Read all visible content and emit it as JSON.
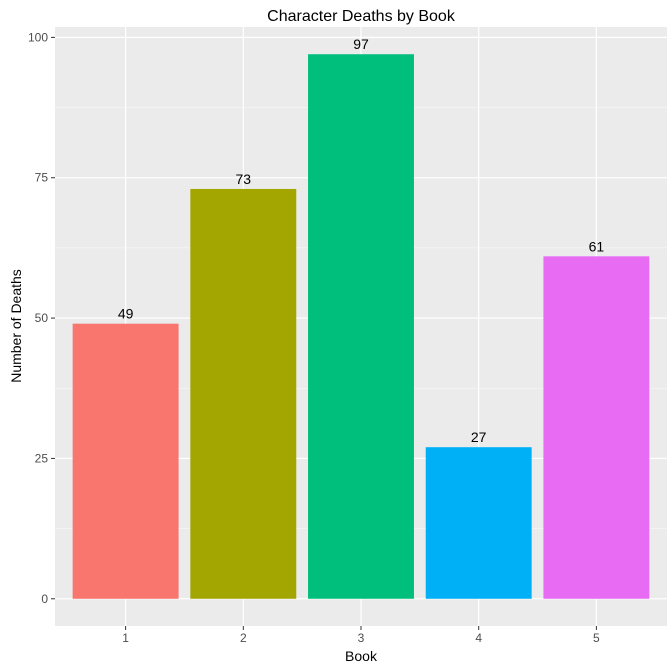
{
  "chart_data": {
    "type": "bar",
    "title": "Character Deaths by Book",
    "xlabel": "Book",
    "ylabel": "Number of Deaths",
    "categories": [
      "1",
      "2",
      "3",
      "4",
      "5"
    ],
    "values": [
      49,
      73,
      97,
      27,
      61
    ],
    "data_labels": [
      "49",
      "73",
      "97",
      "27",
      "61"
    ],
    "colors": [
      "#F8766D",
      "#A3A500",
      "#00BF7D",
      "#00B0F6",
      "#E76BF3"
    ],
    "ylim": [
      -4.85,
      101.85
    ],
    "yticks": [
      0,
      25,
      50,
      75,
      100
    ],
    "ytick_labels": [
      "0",
      "25",
      "50",
      "75",
      "100"
    ],
    "panel_background": "#EBEBEB",
    "grid": true,
    "legend": "none"
  }
}
